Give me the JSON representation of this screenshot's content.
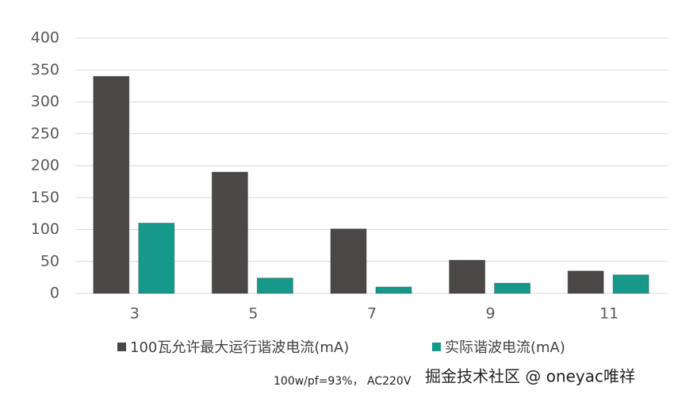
{
  "chart_data": {
    "type": "bar",
    "categories": [
      "3",
      "5",
      "7",
      "9",
      "11"
    ],
    "series": [
      {
        "name": "100瓦允许最大运行谐波电流(mA)",
        "color": "#4a4746",
        "values": [
          340,
          190,
          101,
          52,
          35
        ]
      },
      {
        "name": "实际谐波电流(mA)",
        "color": "#16998a",
        "values": [
          110,
          24,
          10,
          16,
          29
        ]
      }
    ],
    "ylim": [
      0,
      400
    ],
    "yticks": [
      0,
      50,
      100,
      150,
      200,
      250,
      300,
      350,
      400
    ],
    "grid": true,
    "legend": "bottom",
    "annotation": "100w/pf=93%， AC220V",
    "watermark": "掘金技术社区 @ oneyac唯祥"
  }
}
